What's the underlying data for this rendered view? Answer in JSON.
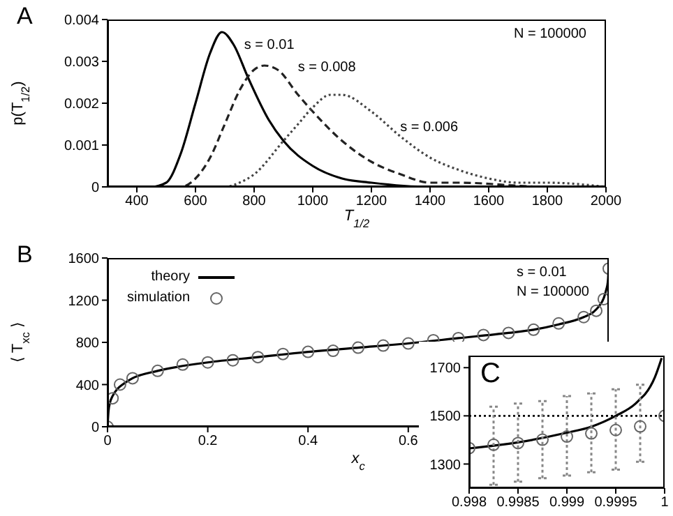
{
  "chart_data": [
    {
      "type": "line",
      "xlabel": "T$_{1/2}$",
      "ylabel": "p(T$_{1/2}$)",
      "annotations": [
        "A",
        "N = 100000"
      ],
      "xlim": [
        300,
        2000
      ],
      "xticks": [
        400,
        600,
        800,
        1000,
        1200,
        1400,
        1600,
        1800,
        2000
      ],
      "ylim": [
        0,
        0.004
      ],
      "yticks": [
        0,
        0.001,
        0.002,
        0.003,
        0.004
      ],
      "legend": false,
      "marker": "none",
      "series": [
        {
          "name": "s = 0.01",
          "color": "#000000",
          "line_style": "solid",
          "x": [
            300,
            450,
            500,
            550,
            600,
            650,
            690,
            730,
            780,
            850,
            900,
            1000,
            1100,
            1200,
            1400,
            1600,
            2000
          ],
          "values": [
            0,
            0,
            0.0001,
            0.0008,
            0.002,
            0.0032,
            0.0037,
            0.0034,
            0.0026,
            0.0016,
            0.0011,
            0.0005,
            0.0002,
            0.0001,
            0,
            0,
            0
          ]
        },
        {
          "name": "s = 0.008",
          "color": "#222222",
          "line_style": "dashed",
          "x": [
            300,
            550,
            600,
            650,
            700,
            750,
            800,
            835,
            880,
            950,
            1000,
            1100,
            1200,
            1300,
            1400,
            1500,
            1800,
            2000
          ],
          "values": [
            0,
            0,
            0.0002,
            0.0007,
            0.0015,
            0.0023,
            0.0028,
            0.0029,
            0.0028,
            0.0022,
            0.0018,
            0.0011,
            0.0006,
            0.0003,
            0.0001,
            0.0001,
            0,
            0
          ]
        },
        {
          "name": "s = 0.006",
          "color": "#444444",
          "line_style": "dotted",
          "x": [
            300,
            700,
            750,
            800,
            900,
            950,
            1000,
            1060,
            1100,
            1200,
            1300,
            1400,
            1500,
            1600,
            1700,
            1800,
            2000
          ],
          "values": [
            0,
            0,
            0.0001,
            0.0003,
            0.0011,
            0.0015,
            0.0019,
            0.0022,
            0.0022,
            0.0018,
            0.0012,
            0.0007,
            0.0004,
            0.0002,
            0.0001,
            0.0001,
            0
          ]
        }
      ]
    },
    {
      "type": "line",
      "xlabel": "x$_{c}$",
      "ylabel": "⟨ T$_{xc}$ ⟩",
      "annotations": [
        "B",
        "s = 0.01",
        "N = 100000"
      ],
      "xlim": [
        0,
        1
      ],
      "xticks": [
        0,
        0.2,
        0.4,
        0.6
      ],
      "ylim": [
        0,
        1600
      ],
      "yticks": [
        0,
        400,
        800,
        1200,
        1600
      ],
      "legend": "top left",
      "series": [
        {
          "name": "theory",
          "type": "line",
          "color": "#000000",
          "line_style": "solid",
          "marker": "none",
          "x": [
            0,
            0.002,
            0.005,
            0.01,
            0.02,
            0.03,
            0.05,
            0.1,
            0.2,
            0.3,
            0.4,
            0.5,
            0.6,
            0.7,
            0.8,
            0.85,
            0.9,
            0.95,
            0.97,
            0.98,
            0.99,
            0.995,
            0.998,
            0.999,
            0.9995,
            0.9998
          ],
          "values": [
            0,
            150,
            230,
            290,
            360,
            400,
            460,
            530,
            610,
            660,
            710,
            750,
            790,
            840,
            890,
            920,
            970,
            1040,
            1090,
            1140,
            1220,
            1300,
            1370,
            1430,
            1500,
            1590
          ]
        },
        {
          "name": "simulation",
          "type": "scatter",
          "color": "#666666",
          "marker": "circle",
          "x": [
            0,
            0.01,
            0.025,
            0.05,
            0.1,
            0.15,
            0.2,
            0.25,
            0.3,
            0.35,
            0.4,
            0.45,
            0.5,
            0.55,
            0.6,
            0.65,
            0.7,
            0.75,
            0.8,
            0.85,
            0.9,
            0.95,
            0.975,
            0.99,
            1
          ],
          "values": [
            0,
            270,
            400,
            460,
            530,
            590,
            610,
            630,
            660,
            690,
            710,
            720,
            750,
            770,
            790,
            820,
            840,
            870,
            890,
            920,
            980,
            1040,
            1100,
            1210,
            1500
          ]
        }
      ]
    },
    {
      "type": "line",
      "annotations": [
        "C"
      ],
      "xlim": [
        0.998,
        1
      ],
      "xticks": [
        0.998,
        0.9985,
        0.999,
        0.9995,
        1
      ],
      "ylim": [
        1200,
        1750
      ],
      "yticks": [
        1300,
        1500,
        1700
      ],
      "legend": false,
      "ref_lines": [
        {
          "axis": "y",
          "value": 1500,
          "color": "#000000",
          "line_style": "dotted"
        }
      ],
      "series": [
        {
          "type": "line",
          "color": "#000000",
          "line_style": "solid",
          "marker": "none",
          "x": [
            0.998,
            0.9985,
            0.999,
            0.99925,
            0.9995,
            0.9997,
            0.99975,
            0.9998,
            0.9999,
            0.99997
          ],
          "values": [
            1365,
            1390,
            1430,
            1455,
            1500,
            1550,
            1570,
            1590,
            1660,
            1740
          ]
        },
        {
          "type": "scatter",
          "color": "#666666",
          "marker": "circle",
          "x": [
            0.998,
            0.99825,
            0.9985,
            0.99875,
            0.999,
            0.99925,
            0.9995,
            0.99975,
            1
          ],
          "values": [
            1366,
            1380,
            1387,
            1401,
            1414,
            1427,
            1441,
            1456,
            1500
          ],
          "errors": [
            null,
            [
              1214,
              1538
            ],
            [
              1227,
              1551
            ],
            [
              1241,
              1561
            ],
            [
              1252,
              1582
            ],
            [
              1266,
              1593
            ],
            [
              1277,
              1610
            ],
            [
              1309,
              1629
            ],
            null
          ]
        }
      ]
    }
  ]
}
